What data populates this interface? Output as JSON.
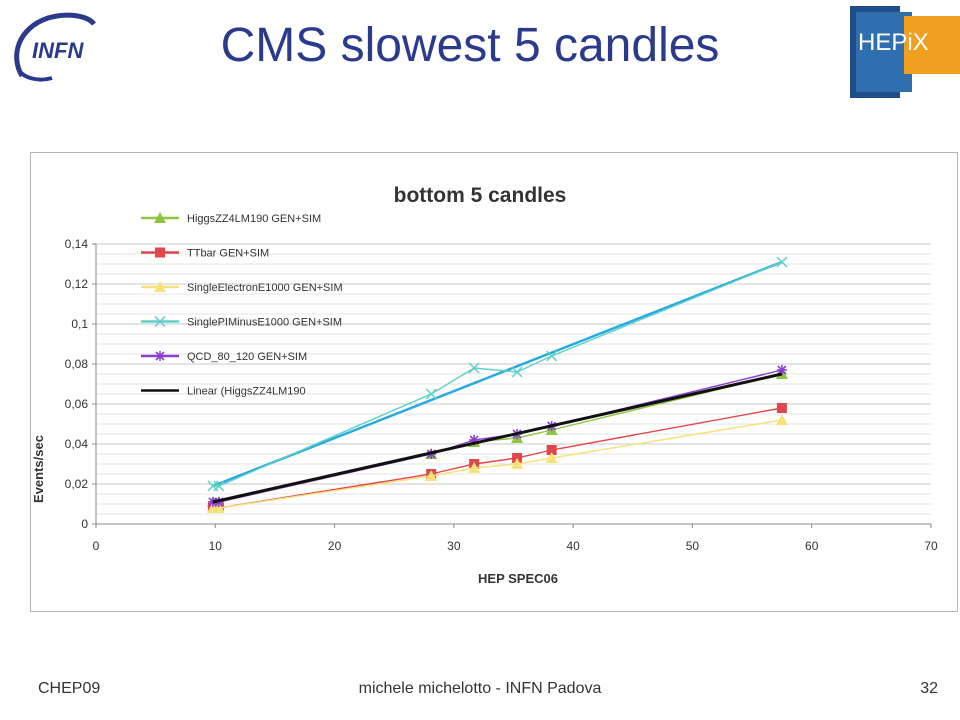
{
  "slide": {
    "title": "CMS slowest 5 candles",
    "logo_left_text": "INFN",
    "logo_right_text": "HEPiX"
  },
  "footer": {
    "left": "CHEP09",
    "center": "michele michelotto - INFN Padova",
    "page_number": "32"
  },
  "chart_data": {
    "type": "line",
    "title": "bottom 5 candles",
    "xlabel": "HEP SPEC06",
    "ylabel": "Events/sec",
    "xlim": [
      0,
      70
    ],
    "ylim": [
      0,
      0.14
    ],
    "xticks": [
      "0",
      "10",
      "20",
      "30",
      "40",
      "50",
      "60",
      "70"
    ],
    "yticks": [
      "0",
      "0,02",
      "0,04",
      "0,06",
      "0,08",
      "0,1",
      "0,12",
      "0,14"
    ],
    "grid": true,
    "legend_position": "top-left",
    "series": [
      {
        "name": "HiggsZZ4LM190 GEN+SIM",
        "color": "#8cc63f",
        "marker": "triangle",
        "x": [
          9.8,
          10.3,
          28.1,
          31.7,
          35.3,
          38.2,
          57.5
        ],
        "y": [
          0.011,
          0.011,
          0.035,
          0.041,
          0.043,
          0.047,
          0.075
        ]
      },
      {
        "name": "TTbar GEN+SIM",
        "color": "#e0474c",
        "marker": "square",
        "x": [
          9.8,
          10.3,
          28.1,
          31.7,
          35.3,
          38.2,
          57.5
        ],
        "y": [
          0.008,
          0.008,
          0.025,
          0.03,
          0.033,
          0.037,
          0.058
        ]
      },
      {
        "name": "SingleElectronE1000 GEN+SIM",
        "color": "#f7e27a",
        "marker": "triangle",
        "x": [
          9.8,
          10.3,
          28.1,
          31.7,
          35.3,
          38.2,
          57.5
        ],
        "y": [
          0.008,
          0.008,
          0.024,
          0.028,
          0.03,
          0.033,
          0.052
        ]
      },
      {
        "name": "SinglePIMinusE1000 GEN+SIM",
        "color": "#5ed0c8",
        "marker": "x",
        "x": [
          9.8,
          10.3,
          28.1,
          31.7,
          35.3,
          38.2,
          57.5
        ],
        "y": [
          0.019,
          0.019,
          0.065,
          0.078,
          0.076,
          0.084,
          0.131
        ]
      },
      {
        "name": "QCD_80_120 GEN+SIM",
        "color": "#8a3fd0",
        "marker": "star",
        "x": [
          9.8,
          10.3,
          28.1,
          31.7,
          35.3,
          38.2,
          57.5
        ],
        "y": [
          0.011,
          0.011,
          0.035,
          0.042,
          0.045,
          0.049,
          0.077
        ]
      },
      {
        "name": "Linear (HiggsZZ4LM190",
        "color": "#111111",
        "marker": "none",
        "kind": "trend",
        "x": [
          9.8,
          57.5
        ],
        "y": [
          0.011,
          0.075
        ]
      }
    ],
    "extra_trendline": {
      "color": "#27a9e1",
      "x": [
        9.8,
        57.5
      ],
      "y": [
        0.019,
        0.131
      ]
    }
  }
}
